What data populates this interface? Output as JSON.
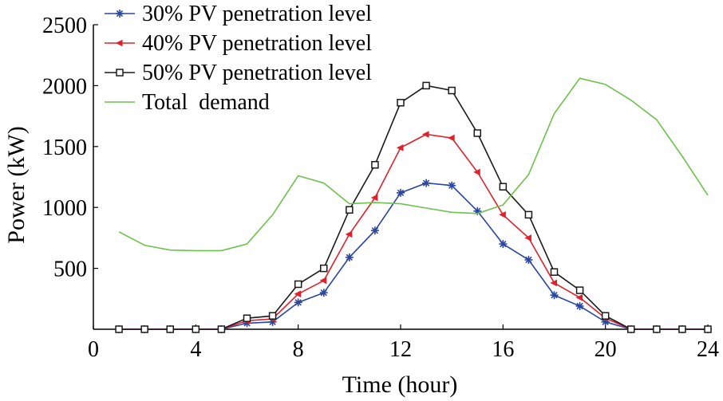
{
  "chart_data": {
    "type": "line",
    "xlabel": "Time (hour)",
    "ylabel": "Power (kW)",
    "xlim": [
      0,
      24
    ],
    "ylim": [
      0,
      2500
    ],
    "x_ticks": [
      0,
      4,
      8,
      12,
      16,
      20,
      24
    ],
    "y_ticks": [
      500,
      1000,
      1500,
      2000,
      2500
    ],
    "grid": false,
    "legend_position": "top-left",
    "series": [
      {
        "name": "30% PV penetration level",
        "color": "#2b46a0",
        "marker": "asterisk",
        "x": [
          1,
          2,
          3,
          4,
          5,
          6,
          7,
          8,
          9,
          10,
          11,
          12,
          13,
          14,
          15,
          16,
          17,
          18,
          19,
          20,
          21,
          22,
          23,
          24
        ],
        "values": [
          0,
          0,
          0,
          0,
          0,
          50,
          60,
          220,
          300,
          590,
          810,
          1120,
          1200,
          1180,
          970,
          700,
          570,
          280,
          190,
          60,
          0,
          0,
          0,
          0
        ]
      },
      {
        "name": "40% PV penetration level",
        "color": "#e0202a",
        "marker": "triangle-left",
        "x": [
          1,
          2,
          3,
          4,
          5,
          6,
          7,
          8,
          9,
          10,
          11,
          12,
          13,
          14,
          15,
          16,
          17,
          18,
          19,
          20,
          21,
          22,
          23,
          24
        ],
        "values": [
          0,
          0,
          0,
          0,
          0,
          70,
          85,
          290,
          400,
          780,
          1080,
          1490,
          1600,
          1570,
          1290,
          940,
          750,
          380,
          260,
          90,
          0,
          0,
          0,
          0
        ]
      },
      {
        "name": "50% PV penetration level",
        "color": "#1a1a1a",
        "marker": "square-open",
        "x": [
          1,
          2,
          3,
          4,
          5,
          6,
          7,
          8,
          9,
          10,
          11,
          12,
          13,
          14,
          15,
          16,
          17,
          18,
          19,
          20,
          21,
          22,
          23,
          24
        ],
        "values": [
          0,
          0,
          0,
          0,
          0,
          90,
          110,
          370,
          500,
          980,
          1350,
          1860,
          2000,
          1960,
          1610,
          1170,
          940,
          470,
          320,
          110,
          0,
          0,
          0,
          0
        ]
      },
      {
        "name": "Total  demand",
        "color": "#6cc24a",
        "marker": "none",
        "x": [
          1,
          2,
          3,
          4,
          5,
          6,
          7,
          8,
          9,
          10,
          11,
          12,
          13,
          14,
          15,
          16,
          17,
          18,
          19,
          20,
          21,
          22,
          23,
          24
        ],
        "values": [
          800,
          690,
          650,
          645,
          645,
          700,
          940,
          1260,
          1200,
          1030,
          1040,
          1030,
          995,
          960,
          950,
          1020,
          1270,
          1770,
          2060,
          2010,
          1880,
          1720,
          1420,
          1100
        ]
      }
    ]
  }
}
